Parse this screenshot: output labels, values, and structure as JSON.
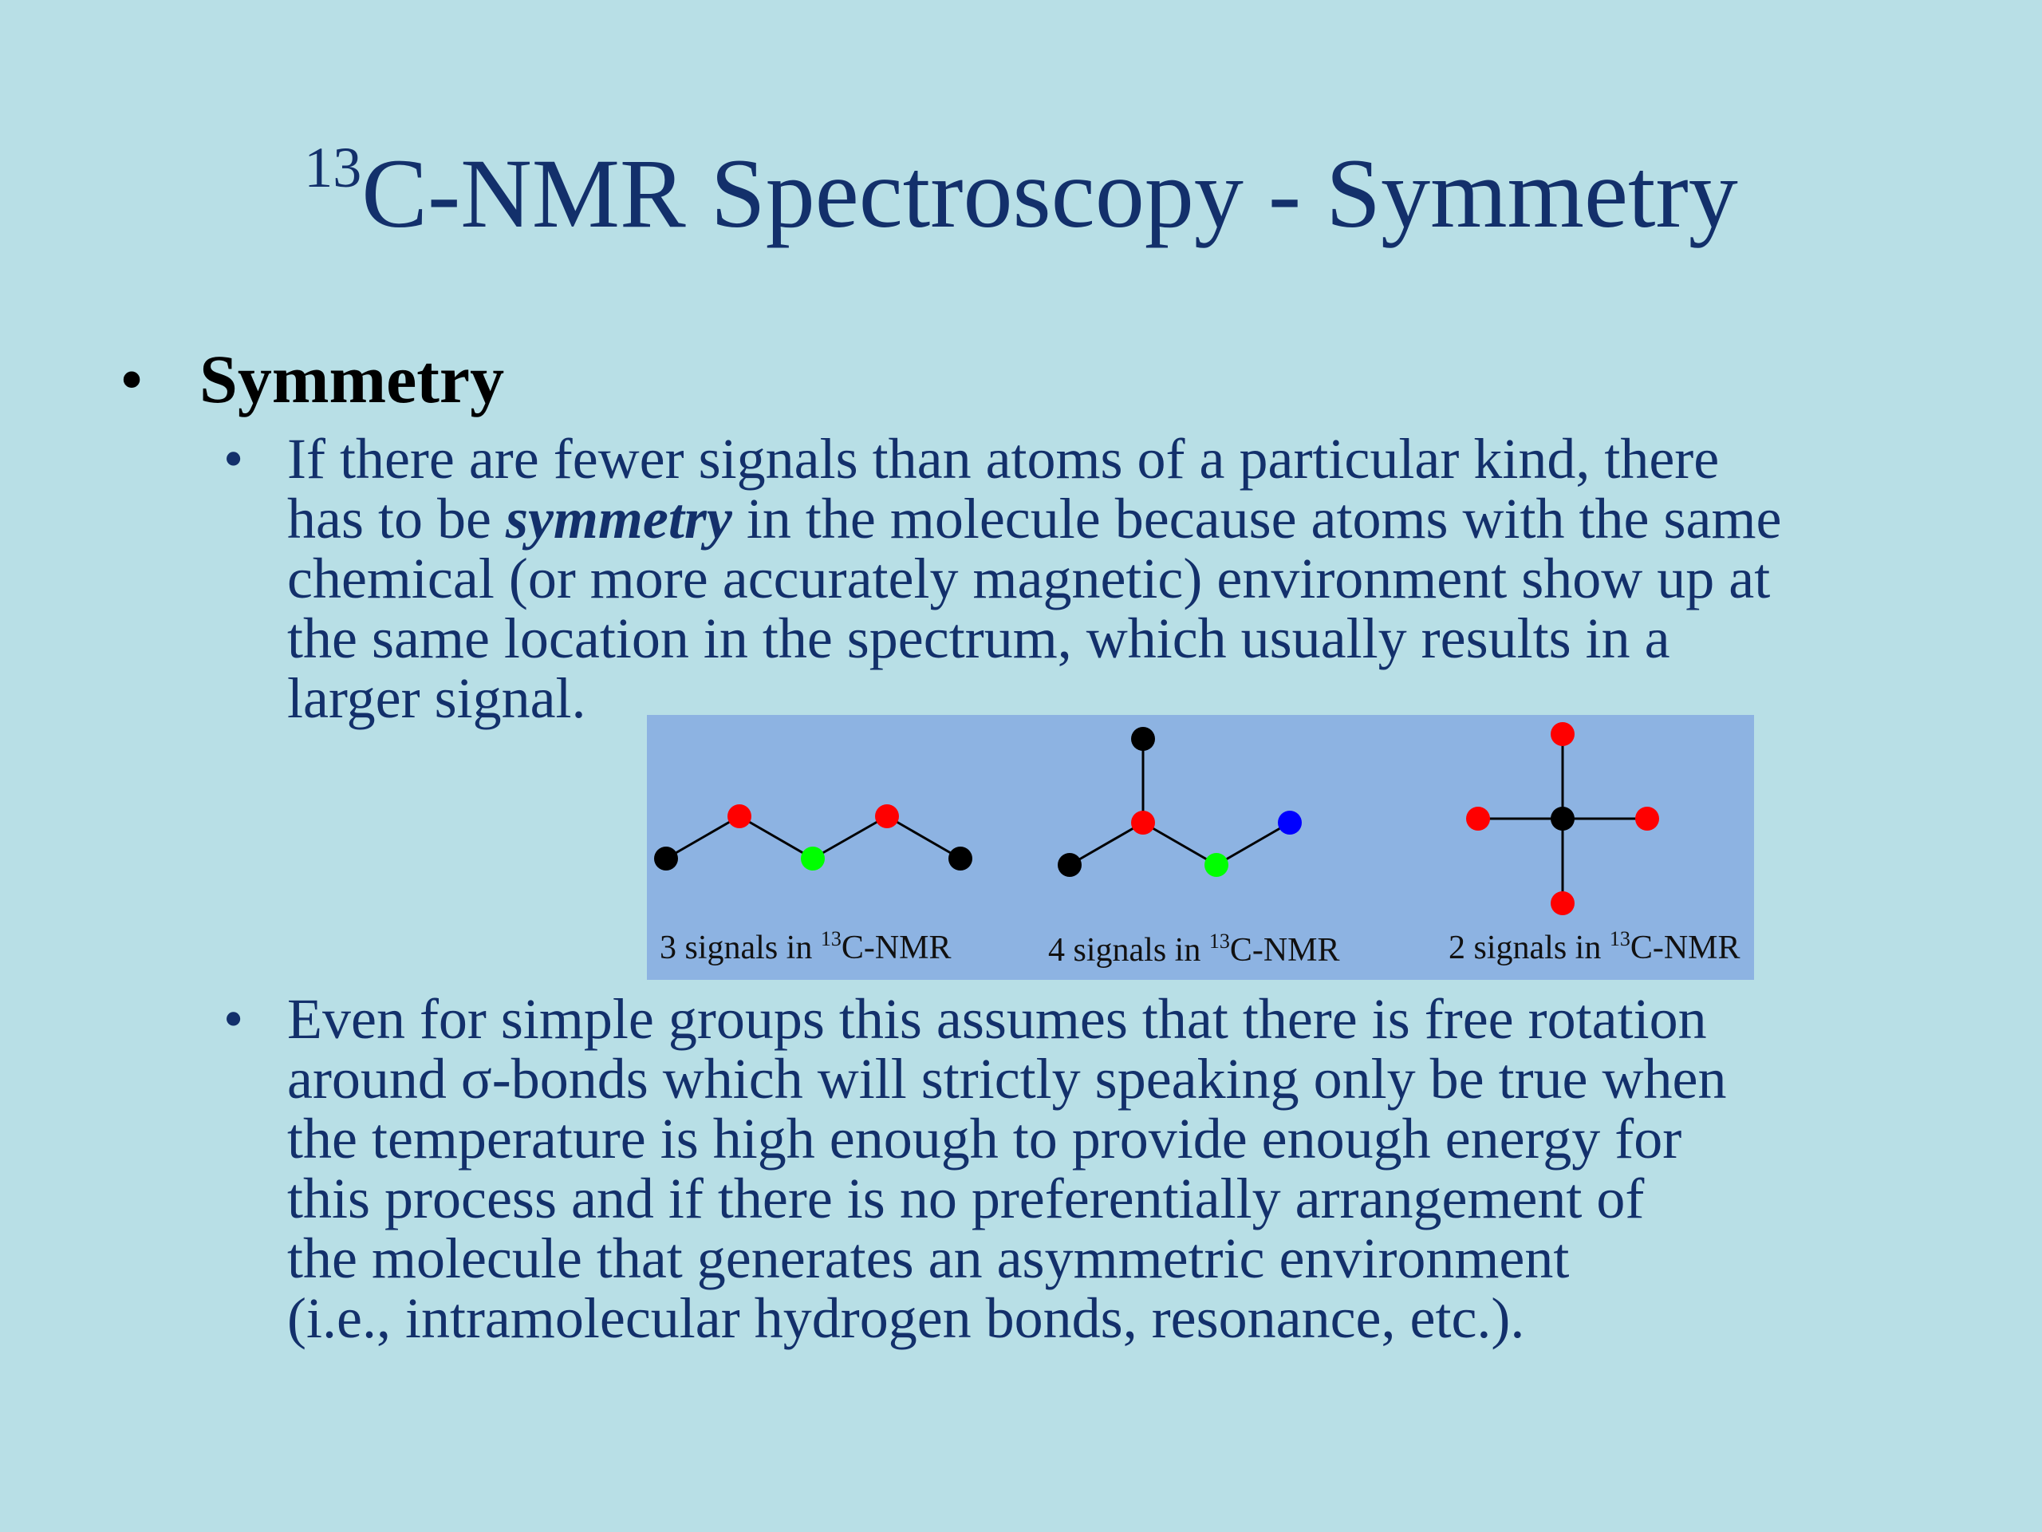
{
  "slide": {
    "title": {
      "superscript": "13",
      "text": "C-NMR Spectroscopy - Symmetry"
    },
    "bullet_char": "•",
    "heading": "Symmetry",
    "point1": {
      "line1": "If there are fewer signals than atoms of a particular kind, there",
      "line2_pre": "has to be ",
      "line2_emphasis": "symmetry",
      "line2_post": " in the molecule because atoms with the same",
      "line3": "chemical (or more accurately magnetic) environment show up at",
      "line4": "the same location in the spectrum, which usually results in a",
      "line5": "larger signal."
    },
    "point2": {
      "lines": [
        "Even for simple groups this assumes that there is free rotation",
        "around σ-bonds which will strictly speaking only be true when",
        "the temperature is high enough to provide enough energy for",
        "this process and if there is no preferentially arrangement of",
        "the molecule that generates an asymmetric environment",
        "(i.e., intramolecular hydrogen bonds, resonance, etc.)."
      ]
    },
    "figure": {
      "captions": [
        {
          "pre": "3 signals in ",
          "sup": "13",
          "post": "C-NMR"
        },
        {
          "pre": "4 signals in ",
          "sup": "13",
          "post": "C-NMR"
        },
        {
          "pre": "2 signals in ",
          "sup": "13",
          "post": "C-NMR"
        }
      ],
      "colors": {
        "background": "#8db3e2",
        "black_atom": "#000000",
        "red_atom": "#ff0000",
        "green_atom": "#00ff00",
        "blue_atom": "#0000ff"
      }
    }
  }
}
